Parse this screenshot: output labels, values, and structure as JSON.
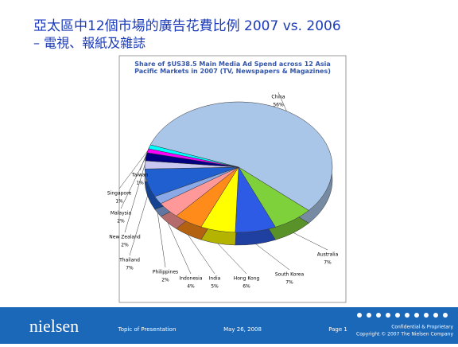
{
  "slide": {
    "title_line1": "亞太區中12個市場的廣告花費比例 2007 vs. 2006",
    "title_line2": "– 電視、報紙及雜誌",
    "footer": {
      "logo": "nielsen",
      "topic": "Topic of Presentation",
      "date": "May 26, 2008",
      "page": "Page 1",
      "confidential": "Confidential & Proprietary",
      "copyright": "Copyright © 2007 The Nielsen Company"
    }
  },
  "chart_data": {
    "type": "pie",
    "title": "Share of $US38.5 Main Media Ad Spend across 12 Asia Pacific Markets in 2007 (TV, Newspapers & Magazines)",
    "categories": [
      "China",
      "Australia",
      "South Korea",
      "Hong Kong",
      "India",
      "Indonesia",
      "Philippines",
      "Thailand",
      "New Zealand",
      "Malaysia",
      "Singapore",
      "Taiwan"
    ],
    "values": [
      56,
      7,
      7,
      6,
      5,
      4,
      2,
      7,
      2,
      2,
      1,
      1
    ],
    "value_labels": [
      "56%",
      "7%",
      "7%",
      "6%",
      "5%",
      "4%",
      "2%",
      "7%",
      "2%",
      "2%",
      "1%",
      "1%"
    ],
    "colors": [
      "#a9c5e8",
      "#7fd13b",
      "#2e5be6",
      "#ffff00",
      "#ff8c1a",
      "#ff9999",
      "#8aa9e6",
      "#1f5fcf",
      "#c8c8f0",
      "#000080",
      "#ff00ff",
      "#00ffff"
    ]
  }
}
